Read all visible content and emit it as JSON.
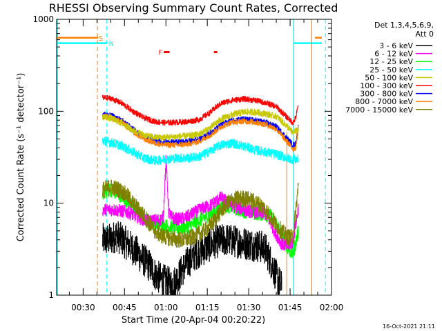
{
  "chart_data": {
    "type": "line",
    "title": "RHESSI Observing Summary Count Rates, Corrected",
    "xlabel": "Start Time (20-Apr-04 00:20:22)",
    "ylabel": "Corrected Count Rate (s⁻¹ detector⁻¹)",
    "yscale": "log",
    "ylim": [
      1,
      1000
    ],
    "xlim_minutes": [
      20.4,
      120
    ],
    "x_tick_labels": [
      "00:30",
      "00:45",
      "01:00",
      "01:15",
      "01:30",
      "01:45",
      "02:00"
    ],
    "x_tick_minutes": [
      30,
      45,
      60,
      75,
      90,
      105,
      120
    ],
    "y_tick_labels": [
      "1",
      "10",
      "100",
      "1000"
    ],
    "y_tick_values": [
      1,
      10,
      100,
      1000
    ],
    "timestamp": "16-Oct-2021 21:11",
    "detector_label": "Det 1,3,4,5,6,9,",
    "attenuator_label": "Att 0",
    "flags": [
      {
        "label": "S",
        "color": "#ff8000",
        "y": 630
      },
      {
        "label": "N",
        "color": "#00ffff",
        "y": 550
      },
      {
        "label": "F",
        "color": "#ff0000",
        "y": 440
      }
    ],
    "series": [
      {
        "name": "3 - 6 keV",
        "color": "#000000",
        "x": [
          37,
          40,
          42,
          44,
          46,
          48,
          50,
          52,
          54,
          56,
          58,
          60,
          62,
          64,
          66,
          68,
          70,
          72,
          74,
          76,
          78,
          80,
          82,
          84,
          86,
          88,
          90,
          92,
          94,
          96,
          98,
          100,
          102
        ],
        "y": [
          4,
          4,
          4.5,
          4,
          3.6,
          3.2,
          2.8,
          2.4,
          2.1,
          1.7,
          1.5,
          1.4,
          1.3,
          1.5,
          1.9,
          2.3,
          2.7,
          3,
          3.2,
          3.5,
          3.8,
          3.9,
          4,
          3.9,
          3.8,
          3.7,
          3.6,
          3.5,
          3.4,
          3.2,
          2.3,
          1.6,
          1.2
        ]
      },
      {
        "name": "6 - 12 keV",
        "color": "#ff00ff",
        "x": [
          37,
          40,
          42,
          44,
          46,
          48,
          50,
          52,
          54,
          56,
          58,
          59,
          60,
          61,
          62,
          64,
          66,
          68,
          70,
          72,
          74,
          76,
          78,
          80,
          82,
          84,
          86,
          88,
          90,
          92,
          94,
          96,
          98,
          100,
          102,
          104,
          106,
          108
        ],
        "y": [
          8.5,
          8.5,
          8.4,
          8.2,
          8,
          7.5,
          7,
          6.6,
          6.4,
          6.5,
          6.6,
          7,
          30,
          8,
          7,
          6.7,
          6.8,
          7.2,
          7.8,
          8.4,
          9,
          9.4,
          10.5,
          11.5,
          10.4,
          9.5,
          9,
          8.6,
          8.2,
          8,
          7.8,
          7.7,
          6,
          4.5,
          3.6,
          3.4,
          3.8,
          9
        ]
      },
      {
        "name": "12 - 25 keV",
        "color": "#00ff00",
        "x": [
          37,
          40,
          42,
          44,
          46,
          48,
          50,
          52,
          54,
          56,
          58,
          60,
          62,
          64,
          66,
          68,
          70,
          72,
          74,
          76,
          78,
          80,
          82,
          84,
          86,
          88,
          90,
          92,
          94,
          96,
          98,
          100,
          102,
          104,
          106,
          108
        ],
        "y": [
          13,
          14,
          13,
          12,
          10.5,
          9,
          7.8,
          7,
          6.3,
          6,
          5.8,
          5.6,
          5.5,
          5.4,
          5.4,
          5.6,
          6,
          6.4,
          7,
          7.6,
          8.4,
          9,
          9.4,
          9.2,
          8.6,
          8.3,
          8.1,
          7.9,
          7.8,
          7.6,
          7.2,
          6,
          4.5,
          3.3,
          2.8,
          5
        ]
      },
      {
        "name": "25 - 50 keV",
        "color": "#00ffff",
        "x": [
          37,
          40,
          44,
          48,
          52,
          56,
          60,
          64,
          68,
          72,
          76,
          78,
          80,
          84,
          88,
          92,
          96,
          100,
          104,
          106,
          108
        ],
        "y": [
          48,
          46,
          42,
          36,
          31,
          29,
          30,
          31,
          31,
          32,
          37,
          40,
          43,
          45,
          42,
          38,
          36,
          34,
          31,
          30,
          30
        ]
      },
      {
        "name": "50 - 100 keV",
        "color": "#c8c800",
        "x": [
          37,
          40,
          44,
          48,
          52,
          56,
          60,
          64,
          68,
          72,
          76,
          78,
          80,
          84,
          88,
          92,
          96,
          100,
          104,
          106,
          108
        ],
        "y": [
          88,
          84,
          74,
          62,
          55,
          52,
          52,
          53,
          54,
          56,
          66,
          74,
          82,
          92,
          98,
          98,
          94,
          88,
          68,
          58,
          64
        ]
      },
      {
        "name": "100 - 300 keV",
        "color": "#ff0000",
        "x": [
          37,
          40,
          44,
          48,
          52,
          56,
          60,
          64,
          68,
          72,
          76,
          78,
          80,
          84,
          88,
          92,
          96,
          100,
          104,
          106,
          107,
          108
        ],
        "y": [
          140,
          138,
          122,
          100,
          85,
          77,
          75,
          76,
          77,
          81,
          97,
          110,
          122,
          132,
          136,
          132,
          124,
          112,
          85,
          75,
          85,
          118
        ]
      },
      {
        "name": "300 - 800 keV",
        "color": "#0000ff",
        "x": [
          37,
          40,
          44,
          48,
          52,
          56,
          60,
          64,
          68,
          72,
          76,
          78,
          80,
          84,
          88,
          92,
          96,
          100,
          104,
          106,
          107,
          108
        ],
        "y": [
          93,
          90,
          80,
          64,
          53,
          48,
          46,
          46,
          47,
          50,
          58,
          64,
          72,
          80,
          82,
          80,
          76,
          68,
          50,
          43,
          44,
          70
        ]
      },
      {
        "name": "800 - 7000 keV",
        "color": "#ff8000",
        "x": [
          37,
          40,
          44,
          48,
          52,
          56,
          60,
          64,
          68,
          72,
          76,
          78,
          80,
          84,
          88,
          92,
          96,
          100,
          104,
          106,
          107,
          108
        ],
        "y": [
          88,
          86,
          76,
          60,
          50,
          45,
          43,
          43,
          44,
          47,
          55,
          61,
          68,
          76,
          78,
          76,
          72,
          64,
          46,
          39,
          40,
          65
        ]
      },
      {
        "name": "7000 - 15000 keV",
        "color": "#808000",
        "x": [
          37,
          40,
          43,
          46,
          48,
          50,
          52,
          54,
          56,
          58,
          60,
          62,
          64,
          66,
          68,
          70,
          72,
          74,
          76,
          78,
          80,
          82,
          84,
          86,
          88,
          90,
          92,
          94,
          96,
          98,
          100,
          102,
          104,
          106,
          108
        ],
        "y": [
          14,
          15,
          14,
          12,
          10,
          8.5,
          7.3,
          6,
          5,
          4.5,
          4.3,
          4.1,
          4,
          4,
          4.1,
          4.3,
          4.6,
          5,
          5.7,
          6.8,
          8.3,
          9.8,
          10.8,
          11.2,
          11.3,
          11,
          10.4,
          9.6,
          8.6,
          7,
          5.8,
          4.9,
          4.3,
          4.2,
          16
        ]
      }
    ]
  }
}
